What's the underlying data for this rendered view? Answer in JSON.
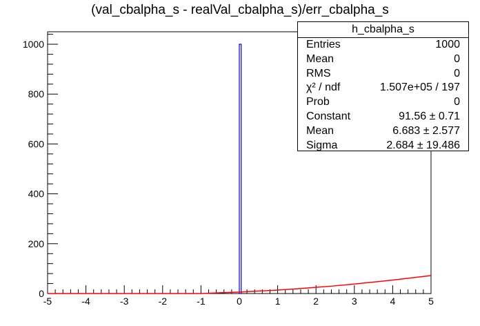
{
  "chart_data": {
    "type": "bar",
    "title": "(val_cbalpha_s - realVal_cbalpha_s)/err_cbalpha_s",
    "xlabel": "",
    "ylabel": "",
    "xlim": [
      -5,
      5
    ],
    "ylim": [
      0,
      1050
    ],
    "x_ticks": [
      "-5",
      "-4",
      "-3",
      "-2",
      "-1",
      "0",
      "1",
      "2",
      "3",
      "4",
      "5"
    ],
    "y_ticks": [
      "0",
      "200",
      "400",
      "600",
      "800",
      "1000"
    ],
    "histogram": {
      "name": "h_cbalpha_s",
      "bin_range": [
        0.0,
        0.05
      ],
      "count": 1000,
      "color": "#0000cc"
    },
    "fit": {
      "color": "#ff0000",
      "x": [
        -5,
        -4,
        -3,
        -2,
        -1,
        -0.5,
        0,
        0.5,
        1,
        1.5,
        2,
        2.5,
        3,
        3.5,
        4,
        4.5,
        5
      ],
      "y": [
        0,
        0,
        0,
        0,
        0,
        3,
        6,
        10,
        14,
        19,
        25,
        31,
        38,
        46,
        54,
        63,
        72
      ]
    },
    "stats": {
      "title": "h_cbalpha_s",
      "rows": [
        {
          "label": "Entries",
          "value": "1000"
        },
        {
          "label": "Mean",
          "value": "0"
        },
        {
          "label": "RMS",
          "value": "0"
        },
        {
          "label": "χ² / ndf",
          "value": "1.507e+05 / 197"
        },
        {
          "label": "Prob",
          "value": "0"
        },
        {
          "label": "Constant",
          "value": "91.56 ± 0.71"
        },
        {
          "label": "Mean",
          "value": "6.683 ± 2.577"
        },
        {
          "label": "Sigma",
          "value": "2.684 ± 19.486"
        }
      ]
    }
  }
}
